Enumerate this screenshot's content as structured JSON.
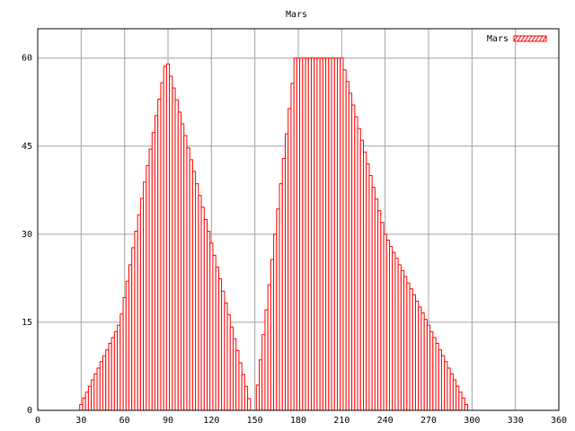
{
  "chart_data": {
    "type": "bar",
    "title": "Mars",
    "legend": "upper right",
    "grid": true,
    "series": [
      {
        "name": "Mars",
        "color": "#ff0000",
        "x": [
          28,
          30,
          32,
          34,
          36,
          38,
          40,
          42,
          44,
          46,
          48,
          50,
          52,
          54,
          56,
          58,
          60,
          62,
          64,
          66,
          68,
          70,
          72,
          74,
          76,
          78,
          80,
          82,
          84,
          86,
          88,
          90,
          92,
          94,
          96,
          98,
          100,
          102,
          104,
          106,
          108,
          110,
          112,
          114,
          116,
          118,
          120,
          122,
          124,
          126,
          128,
          130,
          132,
          134,
          136,
          138,
          140,
          142,
          144,
          146,
          148,
          150,
          152,
          154,
          156,
          158,
          160,
          162,
          164,
          166,
          168,
          170,
          172,
          174,
          176,
          178,
          180,
          182,
          184,
          186,
          188,
          190,
          192,
          194,
          196,
          198,
          200,
          202,
          204,
          206,
          208,
          210,
          212,
          214,
          216,
          218,
          220,
          222,
          224,
          226,
          228,
          230,
          232,
          234,
          236,
          238,
          240,
          242,
          244,
          246,
          248,
          250,
          252,
          254,
          256,
          258,
          260,
          262,
          264,
          266,
          268,
          270,
          272,
          274,
          276,
          278,
          280,
          282,
          284,
          286,
          288,
          290,
          292,
          294,
          296,
          298
        ],
        "values": [
          0,
          1.0,
          2.1,
          3.1,
          4.1,
          5.2,
          6.2,
          7.2,
          8.3,
          9.3,
          10.3,
          11.4,
          12.4,
          13.4,
          14.5,
          16.4,
          19.2,
          22.0,
          24.8,
          27.7,
          30.5,
          33.3,
          36.1,
          38.9,
          41.7,
          44.5,
          47.3,
          50.2,
          53.0,
          55.8,
          58.6,
          59.0,
          56.9,
          54.9,
          52.9,
          50.8,
          48.8,
          46.8,
          44.7,
          42.7,
          40.7,
          38.6,
          36.6,
          34.6,
          32.5,
          30.5,
          28.5,
          26.4,
          24.4,
          22.4,
          20.3,
          18.3,
          16.3,
          14.2,
          12.2,
          10.2,
          8.1,
          6.1,
          4.1,
          2.0,
          0,
          0,
          4.3,
          8.6,
          12.9,
          17.1,
          21.4,
          25.7,
          30.0,
          34.3,
          38.6,
          42.9,
          47.1,
          51.4,
          55.7,
          60,
          60,
          60,
          60,
          60,
          60,
          60,
          60,
          60,
          60,
          60,
          60,
          60,
          60,
          60,
          60,
          60,
          58,
          56,
          54,
          52,
          50,
          48,
          46,
          44,
          42,
          40,
          38,
          36,
          34,
          32,
          30,
          29.0,
          27.9,
          26.9,
          25.9,
          24.8,
          23.8,
          22.8,
          21.7,
          20.7,
          19.7,
          18.6,
          17.6,
          16.6,
          15.5,
          14.5,
          13.4,
          12.4,
          11.4,
          10.3,
          9.3,
          8.3,
          7.2,
          6.2,
          5.2,
          4.1,
          3.1,
          2.1,
          1.0,
          0
        ]
      }
    ],
    "bar_width": 2,
    "xlim": [
      0,
      360
    ],
    "xticks": [
      0,
      30,
      60,
      90,
      120,
      150,
      180,
      210,
      240,
      270,
      300,
      330,
      360
    ],
    "ylim": [
      0,
      65
    ],
    "yticks": [
      0,
      15,
      30,
      45,
      60
    ]
  }
}
